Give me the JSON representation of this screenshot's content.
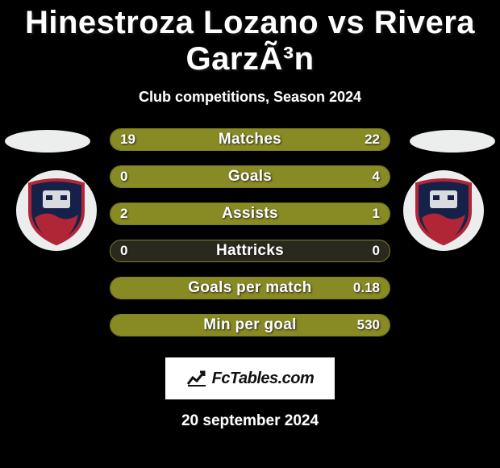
{
  "title": "Hinestroza Lozano vs Rivera GarzÃ³n",
  "subtitle": "Club competitions, Season 2024",
  "date": "20 september 2024",
  "attribution": "FcTables.com",
  "colors": {
    "background": "#000000",
    "bar_track": "#29291e",
    "bar_border": "#7f8022",
    "bar_fill": "#888a23",
    "ellipse": "#eceded",
    "text": "#ffffff"
  },
  "club_badge": {
    "bg": "#ffffff",
    "shield_fill": "#16214a",
    "shield_stroke": "#b02637",
    "swoosh": "#b02637",
    "face": "#d9dbe0"
  },
  "comparison": {
    "type": "h2h-bar",
    "rows": [
      {
        "label": "Matches",
        "left": "19",
        "right": "22",
        "left_pct": 46.3,
        "right_pct": 53.7
      },
      {
        "label": "Goals",
        "left": "0",
        "right": "4",
        "left_pct": 0.0,
        "right_pct": 100.0
      },
      {
        "label": "Assists",
        "left": "2",
        "right": "1",
        "left_pct": 66.7,
        "right_pct": 33.3
      },
      {
        "label": "Hattricks",
        "left": "0",
        "right": "0",
        "left_pct": 0.0,
        "right_pct": 0.0
      },
      {
        "label": "Goals per match",
        "left": "",
        "right": "0.18",
        "left_pct": 0.0,
        "right_pct": 100.0
      },
      {
        "label": "Min per goal",
        "left": "",
        "right": "530",
        "left_pct": 0.0,
        "right_pct": 100.0
      }
    ]
  }
}
